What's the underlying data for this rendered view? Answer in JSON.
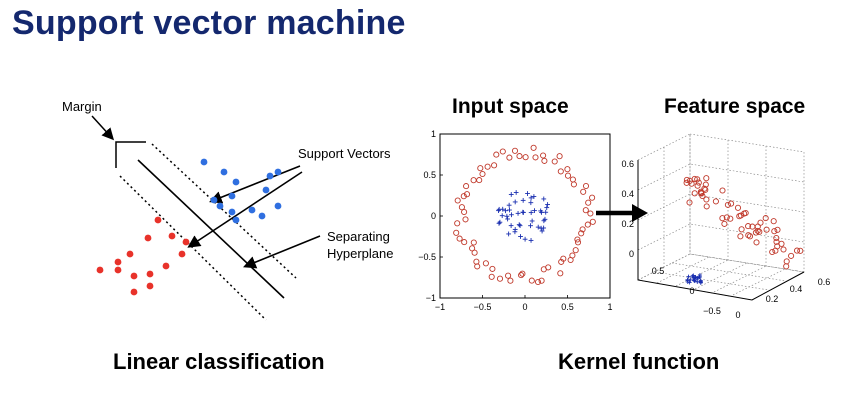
{
  "title": "Support vector machine",
  "linear": {
    "caption": "Linear classification",
    "margin_label": "Margin",
    "support_vectors_label": "Support Vectors",
    "hyperplane_label_line1": "Separating",
    "hyperplane_label_line2": "Hyperplane",
    "colors": {
      "class_a": "#2f6fe0",
      "class_b": "#e8322a"
    }
  },
  "kernel": {
    "caption": "Kernel function",
    "input_title": "Input space",
    "feature_title": "Feature space",
    "input_x_ticks": [
      "−1",
      "−0.5",
      "0",
      "0.5",
      "1"
    ],
    "input_y_ticks": [
      "1",
      "0.5",
      "0",
      "−0.5",
      "−1"
    ],
    "feature_z_ticks": [
      "0.6",
      "0.4",
      "0.2",
      "0"
    ],
    "feature_x_ticks": [
      "0",
      "0.2",
      "0.4",
      "0.6"
    ],
    "feature_y_ticks": [
      "0.5",
      "0",
      "−0.5"
    ],
    "colors": {
      "outer": "#c0392b",
      "inner": "#1a2fb0"
    }
  }
}
